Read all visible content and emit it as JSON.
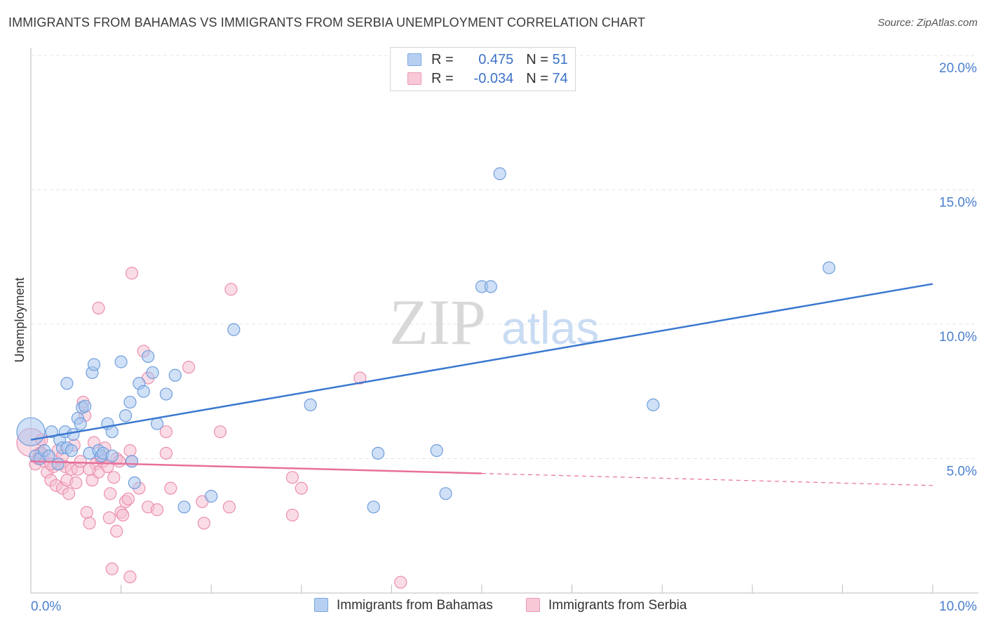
{
  "header": {
    "title": "IMMIGRANTS FROM BAHAMAS VS IMMIGRANTS FROM SERBIA UNEMPLOYMENT CORRELATION CHART",
    "source": "Source: ZipAtlas.com"
  },
  "watermark": {
    "zip": "ZIP",
    "atlas": "atlas"
  },
  "legend": {
    "rows": [
      {
        "r_label": "R =",
        "r_value": "0.475",
        "n_label": "N =",
        "n_value": "51"
      },
      {
        "r_label": "R =",
        "r_value": "-0.034",
        "n_label": "N =",
        "n_value": "74"
      }
    ]
  },
  "bottom_legend": {
    "bahamas": "Immigrants from Bahamas",
    "serbia": "Immigrants from Serbia"
  },
  "colors": {
    "bahamas_fill": "#a9c7ef",
    "bahamas_stroke": "#6f9fdc",
    "bahamas_line": "#3a78d0",
    "serbia_fill": "#f6bfd1",
    "serbia_stroke": "#eb8fae",
    "serbia_line": "#e8709a",
    "tick_label": "#4a7fce",
    "grid": "#e4e4e4"
  },
  "chart_data": {
    "type": "scatter",
    "title": "IMMIGRANTS FROM BAHAMAS VS IMMIGRANTS FROM SERBIA UNEMPLOYMENT CORRELATION CHART",
    "xlabel": "",
    "ylabel": "Unemployment",
    "xlim": [
      0,
      10
    ],
    "ylim": [
      0,
      20.5
    ],
    "x_tick_labels": [
      "0.0%",
      "10.0%"
    ],
    "y_ticks": [
      5,
      10,
      15,
      20
    ],
    "y_tick_labels": [
      "5.0%",
      "10.0%",
      "15.0%",
      "20.0%"
    ],
    "grid": true,
    "legend_position": "top-center",
    "series": [
      {
        "name": "Immigrants from Bahamas",
        "r": 0.475,
        "n": 51,
        "trend": {
          "x": [
            0,
            10
          ],
          "y": [
            5.7,
            11.5
          ],
          "dashed_from": null
        },
        "points": [
          {
            "x": 0.0,
            "y": 6.0,
            "big": true
          },
          {
            "x": 0.05,
            "y": 5.1
          },
          {
            "x": 0.1,
            "y": 5.0
          },
          {
            "x": 0.15,
            "y": 5.3
          },
          {
            "x": 0.2,
            "y": 5.1
          },
          {
            "x": 0.23,
            "y": 6.0
          },
          {
            "x": 0.3,
            "y": 4.8
          },
          {
            "x": 0.32,
            "y": 5.7
          },
          {
            "x": 0.35,
            "y": 5.4
          },
          {
            "x": 0.38,
            "y": 6.0
          },
          {
            "x": 0.4,
            "y": 5.4
          },
          {
            "x": 0.45,
            "y": 5.3
          },
          {
            "x": 0.4,
            "y": 7.8
          },
          {
            "x": 0.47,
            "y": 5.9
          },
          {
            "x": 0.52,
            "y": 6.5
          },
          {
            "x": 0.55,
            "y": 6.3
          },
          {
            "x": 0.57,
            "y": 6.9
          },
          {
            "x": 0.6,
            "y": 6.95
          },
          {
            "x": 0.65,
            "y": 5.2
          },
          {
            "x": 0.68,
            "y": 8.2
          },
          {
            "x": 0.7,
            "y": 8.5
          },
          {
            "x": 0.75,
            "y": 5.3
          },
          {
            "x": 0.78,
            "y": 5.1
          },
          {
            "x": 0.8,
            "y": 5.2
          },
          {
            "x": 0.85,
            "y": 6.3
          },
          {
            "x": 0.9,
            "y": 6.0
          },
          {
            "x": 0.9,
            "y": 5.1
          },
          {
            "x": 1.0,
            "y": 8.6
          },
          {
            "x": 1.05,
            "y": 6.6
          },
          {
            "x": 1.1,
            "y": 7.1
          },
          {
            "x": 1.12,
            "y": 4.9
          },
          {
            "x": 1.15,
            "y": 4.1
          },
          {
            "x": 1.2,
            "y": 7.8
          },
          {
            "x": 1.25,
            "y": 7.5
          },
          {
            "x": 1.3,
            "y": 8.8
          },
          {
            "x": 1.35,
            "y": 8.2
          },
          {
            "x": 1.4,
            "y": 6.3
          },
          {
            "x": 1.5,
            "y": 7.4
          },
          {
            "x": 1.6,
            "y": 8.1
          },
          {
            "x": 1.7,
            "y": 3.2
          },
          {
            "x": 2.0,
            "y": 3.6
          },
          {
            "x": 2.25,
            "y": 9.8
          },
          {
            "x": 3.1,
            "y": 7.0
          },
          {
            "x": 3.8,
            "y": 3.2
          },
          {
            "x": 3.85,
            "y": 5.2
          },
          {
            "x": 4.5,
            "y": 5.3
          },
          {
            "x": 4.6,
            "y": 3.7
          },
          {
            "x": 5.0,
            "y": 11.4
          },
          {
            "x": 5.1,
            "y": 11.4
          },
          {
            "x": 5.2,
            "y": 15.6
          },
          {
            "x": 6.9,
            "y": 7.0
          },
          {
            "x": 8.85,
            "y": 12.1
          }
        ]
      },
      {
        "name": "Immigrants from Serbia",
        "r": -0.034,
        "n": 74,
        "trend": {
          "x": [
            0,
            10
          ],
          "y": [
            4.9,
            4.0
          ],
          "dashed_from": 5.0
        },
        "points": [
          {
            "x": 0.0,
            "y": 5.6,
            "big": true
          },
          {
            "x": 0.05,
            "y": 4.8
          },
          {
            "x": 0.08,
            "y": 5.0
          },
          {
            "x": 0.1,
            "y": 5.2
          },
          {
            "x": 0.12,
            "y": 5.7
          },
          {
            "x": 0.15,
            "y": 4.9
          },
          {
            "x": 0.18,
            "y": 4.5
          },
          {
            "x": 0.2,
            "y": 5.1
          },
          {
            "x": 0.22,
            "y": 4.2
          },
          {
            "x": 0.25,
            "y": 4.7
          },
          {
            "x": 0.28,
            "y": 4.0
          },
          {
            "x": 0.3,
            "y": 5.3
          },
          {
            "x": 0.32,
            "y": 4.8
          },
          {
            "x": 0.35,
            "y": 3.9
          },
          {
            "x": 0.38,
            "y": 4.7
          },
          {
            "x": 0.4,
            "y": 4.2
          },
          {
            "x": 0.42,
            "y": 3.7
          },
          {
            "x": 0.45,
            "y": 4.6
          },
          {
            "x": 0.48,
            "y": 5.5
          },
          {
            "x": 0.5,
            "y": 4.1
          },
          {
            "x": 0.52,
            "y": 4.6
          },
          {
            "x": 0.55,
            "y": 4.9
          },
          {
            "x": 0.58,
            "y": 7.1
          },
          {
            "x": 0.6,
            "y": 6.6
          },
          {
            "x": 0.62,
            "y": 3.0
          },
          {
            "x": 0.65,
            "y": 2.6
          },
          {
            "x": 0.68,
            "y": 4.2
          },
          {
            "x": 0.7,
            "y": 5.6
          },
          {
            "x": 0.72,
            "y": 4.8
          },
          {
            "x": 0.75,
            "y": 4.5
          },
          {
            "x": 0.75,
            "y": 10.6
          },
          {
            "x": 0.78,
            "y": 5.0
          },
          {
            "x": 0.8,
            "y": 4.9
          },
          {
            "x": 0.82,
            "y": 5.4
          },
          {
            "x": 0.85,
            "y": 4.7
          },
          {
            "x": 0.87,
            "y": 2.8
          },
          {
            "x": 0.88,
            "y": 3.7
          },
          {
            "x": 0.9,
            "y": 0.9
          },
          {
            "x": 0.92,
            "y": 4.3
          },
          {
            "x": 0.95,
            "y": 5.0
          },
          {
            "x": 0.95,
            "y": 2.3
          },
          {
            "x": 0.98,
            "y": 4.9
          },
          {
            "x": 1.0,
            "y": 3.0
          },
          {
            "x": 1.02,
            "y": 2.9
          },
          {
            "x": 1.05,
            "y": 3.4
          },
          {
            "x": 1.08,
            "y": 3.5
          },
          {
            "x": 1.1,
            "y": 5.3
          },
          {
            "x": 1.12,
            "y": 4.9
          },
          {
            "x": 1.1,
            "y": 0.6
          },
          {
            "x": 1.12,
            "y": 11.9
          },
          {
            "x": 1.2,
            "y": 3.9
          },
          {
            "x": 1.25,
            "y": 9.0
          },
          {
            "x": 1.3,
            "y": 3.2
          },
          {
            "x": 1.3,
            "y": 8.0
          },
          {
            "x": 1.4,
            "y": 3.1
          },
          {
            "x": 1.5,
            "y": 5.2
          },
          {
            "x": 1.5,
            "y": 6.0
          },
          {
            "x": 1.55,
            "y": 3.9
          },
          {
            "x": 1.75,
            "y": 8.4
          },
          {
            "x": 1.9,
            "y": 3.4
          },
          {
            "x": 1.92,
            "y": 2.6
          },
          {
            "x": 2.1,
            "y": 6.0
          },
          {
            "x": 2.2,
            "y": 3.2
          },
          {
            "x": 2.22,
            "y": 11.3
          },
          {
            "x": 2.9,
            "y": 4.3
          },
          {
            "x": 2.9,
            "y": 2.9
          },
          {
            "x": 3.0,
            "y": 3.9
          },
          {
            "x": 3.65,
            "y": 8.0
          },
          {
            "x": 4.1,
            "y": 0.4
          },
          {
            "x": 0.12,
            "y": 5.2
          },
          {
            "x": 0.22,
            "y": 4.8
          },
          {
            "x": 0.35,
            "y": 5.1
          },
          {
            "x": 0.65,
            "y": 4.6
          }
        ]
      }
    ]
  }
}
